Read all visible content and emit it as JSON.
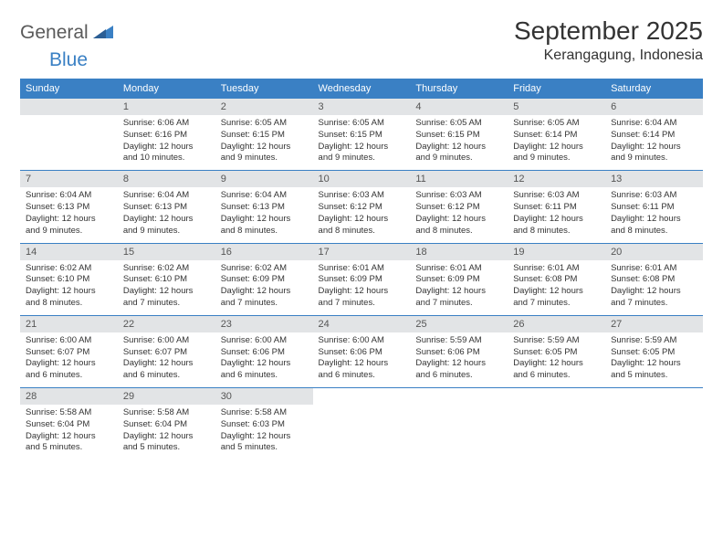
{
  "brand": {
    "part1": "General",
    "part2": "Blue"
  },
  "title": "September 2025",
  "location": "Kerangagung, Indonesia",
  "colors": {
    "header_bg": "#3a80c4",
    "header_text": "#ffffff",
    "datebar_bg": "#e2e4e6",
    "body_text": "#333333",
    "separator": "#3a80c4",
    "logo_gray": "#5a5a5a",
    "logo_blue": "#3a80c4",
    "page_bg": "#ffffff"
  },
  "typography": {
    "title_fontsize": 28,
    "location_fontsize": 16,
    "header_fontsize": 11,
    "datenum_fontsize": 11,
    "body_fontsize": 9.5
  },
  "day_headers": [
    "Sunday",
    "Monday",
    "Tuesday",
    "Wednesday",
    "Thursday",
    "Friday",
    "Saturday"
  ],
  "weeks": [
    [
      {
        "date": "",
        "sunrise": "",
        "sunset": "",
        "daylight": ""
      },
      {
        "date": "1",
        "sunrise": "Sunrise: 6:06 AM",
        "sunset": "Sunset: 6:16 PM",
        "daylight": "Daylight: 12 hours and 10 minutes."
      },
      {
        "date": "2",
        "sunrise": "Sunrise: 6:05 AM",
        "sunset": "Sunset: 6:15 PM",
        "daylight": "Daylight: 12 hours and 9 minutes."
      },
      {
        "date": "3",
        "sunrise": "Sunrise: 6:05 AM",
        "sunset": "Sunset: 6:15 PM",
        "daylight": "Daylight: 12 hours and 9 minutes."
      },
      {
        "date": "4",
        "sunrise": "Sunrise: 6:05 AM",
        "sunset": "Sunset: 6:15 PM",
        "daylight": "Daylight: 12 hours and 9 minutes."
      },
      {
        "date": "5",
        "sunrise": "Sunrise: 6:05 AM",
        "sunset": "Sunset: 6:14 PM",
        "daylight": "Daylight: 12 hours and 9 minutes."
      },
      {
        "date": "6",
        "sunrise": "Sunrise: 6:04 AM",
        "sunset": "Sunset: 6:14 PM",
        "daylight": "Daylight: 12 hours and 9 minutes."
      }
    ],
    [
      {
        "date": "7",
        "sunrise": "Sunrise: 6:04 AM",
        "sunset": "Sunset: 6:13 PM",
        "daylight": "Daylight: 12 hours and 9 minutes."
      },
      {
        "date": "8",
        "sunrise": "Sunrise: 6:04 AM",
        "sunset": "Sunset: 6:13 PM",
        "daylight": "Daylight: 12 hours and 9 minutes."
      },
      {
        "date": "9",
        "sunrise": "Sunrise: 6:04 AM",
        "sunset": "Sunset: 6:13 PM",
        "daylight": "Daylight: 12 hours and 8 minutes."
      },
      {
        "date": "10",
        "sunrise": "Sunrise: 6:03 AM",
        "sunset": "Sunset: 6:12 PM",
        "daylight": "Daylight: 12 hours and 8 minutes."
      },
      {
        "date": "11",
        "sunrise": "Sunrise: 6:03 AM",
        "sunset": "Sunset: 6:12 PM",
        "daylight": "Daylight: 12 hours and 8 minutes."
      },
      {
        "date": "12",
        "sunrise": "Sunrise: 6:03 AM",
        "sunset": "Sunset: 6:11 PM",
        "daylight": "Daylight: 12 hours and 8 minutes."
      },
      {
        "date": "13",
        "sunrise": "Sunrise: 6:03 AM",
        "sunset": "Sunset: 6:11 PM",
        "daylight": "Daylight: 12 hours and 8 minutes."
      }
    ],
    [
      {
        "date": "14",
        "sunrise": "Sunrise: 6:02 AM",
        "sunset": "Sunset: 6:10 PM",
        "daylight": "Daylight: 12 hours and 8 minutes."
      },
      {
        "date": "15",
        "sunrise": "Sunrise: 6:02 AM",
        "sunset": "Sunset: 6:10 PM",
        "daylight": "Daylight: 12 hours and 7 minutes."
      },
      {
        "date": "16",
        "sunrise": "Sunrise: 6:02 AM",
        "sunset": "Sunset: 6:09 PM",
        "daylight": "Daylight: 12 hours and 7 minutes."
      },
      {
        "date": "17",
        "sunrise": "Sunrise: 6:01 AM",
        "sunset": "Sunset: 6:09 PM",
        "daylight": "Daylight: 12 hours and 7 minutes."
      },
      {
        "date": "18",
        "sunrise": "Sunrise: 6:01 AM",
        "sunset": "Sunset: 6:09 PM",
        "daylight": "Daylight: 12 hours and 7 minutes."
      },
      {
        "date": "19",
        "sunrise": "Sunrise: 6:01 AM",
        "sunset": "Sunset: 6:08 PM",
        "daylight": "Daylight: 12 hours and 7 minutes."
      },
      {
        "date": "20",
        "sunrise": "Sunrise: 6:01 AM",
        "sunset": "Sunset: 6:08 PM",
        "daylight": "Daylight: 12 hours and 7 minutes."
      }
    ],
    [
      {
        "date": "21",
        "sunrise": "Sunrise: 6:00 AM",
        "sunset": "Sunset: 6:07 PM",
        "daylight": "Daylight: 12 hours and 6 minutes."
      },
      {
        "date": "22",
        "sunrise": "Sunrise: 6:00 AM",
        "sunset": "Sunset: 6:07 PM",
        "daylight": "Daylight: 12 hours and 6 minutes."
      },
      {
        "date": "23",
        "sunrise": "Sunrise: 6:00 AM",
        "sunset": "Sunset: 6:06 PM",
        "daylight": "Daylight: 12 hours and 6 minutes."
      },
      {
        "date": "24",
        "sunrise": "Sunrise: 6:00 AM",
        "sunset": "Sunset: 6:06 PM",
        "daylight": "Daylight: 12 hours and 6 minutes."
      },
      {
        "date": "25",
        "sunrise": "Sunrise: 5:59 AM",
        "sunset": "Sunset: 6:06 PM",
        "daylight": "Daylight: 12 hours and 6 minutes."
      },
      {
        "date": "26",
        "sunrise": "Sunrise: 5:59 AM",
        "sunset": "Sunset: 6:05 PM",
        "daylight": "Daylight: 12 hours and 6 minutes."
      },
      {
        "date": "27",
        "sunrise": "Sunrise: 5:59 AM",
        "sunset": "Sunset: 6:05 PM",
        "daylight": "Daylight: 12 hours and 5 minutes."
      }
    ],
    [
      {
        "date": "28",
        "sunrise": "Sunrise: 5:58 AM",
        "sunset": "Sunset: 6:04 PM",
        "daylight": "Daylight: 12 hours and 5 minutes."
      },
      {
        "date": "29",
        "sunrise": "Sunrise: 5:58 AM",
        "sunset": "Sunset: 6:04 PM",
        "daylight": "Daylight: 12 hours and 5 minutes."
      },
      {
        "date": "30",
        "sunrise": "Sunrise: 5:58 AM",
        "sunset": "Sunset: 6:03 PM",
        "daylight": "Daylight: 12 hours and 5 minutes."
      },
      {
        "date": "",
        "sunrise": "",
        "sunset": "",
        "daylight": ""
      },
      {
        "date": "",
        "sunrise": "",
        "sunset": "",
        "daylight": ""
      },
      {
        "date": "",
        "sunrise": "",
        "sunset": "",
        "daylight": ""
      },
      {
        "date": "",
        "sunrise": "",
        "sunset": "",
        "daylight": ""
      }
    ]
  ]
}
